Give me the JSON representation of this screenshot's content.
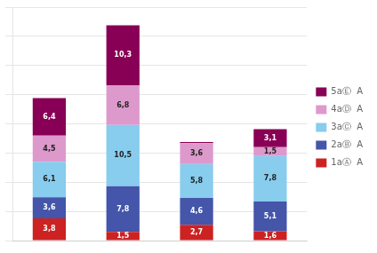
{
  "chart_data": {
    "type": "bar",
    "stacked": true,
    "categories": [
      null,
      null,
      null,
      null
    ],
    "series": [
      {
        "name": "1aⒶ  A",
        "color": "#cc2222",
        "values": [
          3.8,
          1.5,
          2.7,
          1.6
        ],
        "value_labels": [
          "3,8",
          "1,5",
          "2,7",
          "1,6"
        ]
      },
      {
        "name": "2aⒷ  A",
        "color": "#4455aa",
        "values": [
          3.6,
          7.8,
          4.6,
          5.1
        ],
        "value_labels": [
          "3,6",
          "7,8",
          "4,6",
          "5,1"
        ]
      },
      {
        "name": "3aⒸ  A",
        "color": "#88ccee",
        "values": [
          6.1,
          10.5,
          5.8,
          7.8
        ],
        "value_labels": [
          "6,1",
          "10,5",
          "5,8",
          "7,8"
        ]
      },
      {
        "name": "4aⒹ  A",
        "color": "#dd99cc",
        "values": [
          4.5,
          6.8,
          3.6,
          1.5
        ],
        "value_labels": [
          "4,5",
          "6,8",
          "3,6",
          "1,5"
        ]
      },
      {
        "name": "5aⒺ  A",
        "color": "#880055",
        "values": [
          6.4,
          10.3,
          0.2,
          3.1
        ],
        "value_labels": [
          "6,4",
          "10,3",
          null,
          "3,1"
        ]
      }
    ],
    "ylim": [
      0,
      40
    ],
    "yticks": [
      0,
      5,
      10,
      15,
      20,
      25,
      30,
      35,
      40
    ],
    "grid": true,
    "legend": "right",
    "data_labels": true,
    "tick_labels": false
  }
}
